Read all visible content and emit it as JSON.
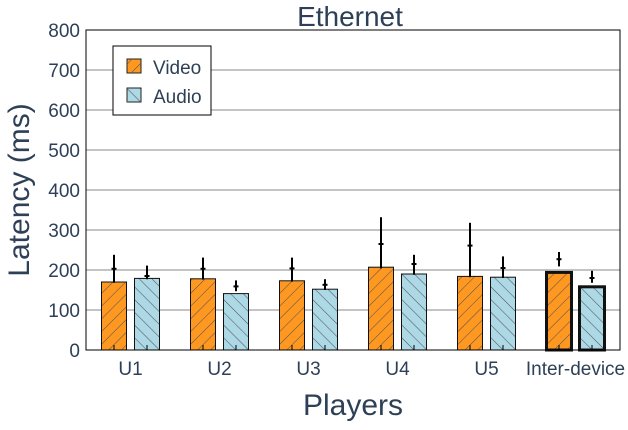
{
  "chart_data": {
    "type": "bar",
    "title": "Ethernet",
    "xlabel": "Players",
    "ylabel": "Latency (ms)",
    "ylim": [
      0,
      800
    ],
    "yticks": [
      0,
      100,
      200,
      300,
      400,
      500,
      600,
      700,
      800
    ],
    "grid": "horizontal",
    "legend_position": "top-left",
    "categories": [
      "U1",
      "U2",
      "U3",
      "U4",
      "U5",
      "Inter-device"
    ],
    "highlighted_category": "Inter-device",
    "series": [
      {
        "name": "Video",
        "color": "#ff9820",
        "hatch": "forward-diagonal",
        "values": [
          170,
          178,
          173,
          207,
          184,
          194
        ],
        "mean_markers": [
          203,
          203,
          204,
          265,
          261,
          227
        ],
        "error_low": [
          168,
          176,
          171,
          204,
          182,
          209
        ],
        "error_high": [
          238,
          231,
          231,
          332,
          318,
          245
        ]
      },
      {
        "name": "Audio",
        "color": "#add8e6",
        "hatch": "backward-diagonal",
        "values": [
          179,
          141,
          152,
          190,
          182,
          158
        ],
        "mean_markers": [
          185,
          159,
          163,
          215,
          205,
          180
        ],
        "error_low": [
          177,
          147,
          150,
          188,
          180,
          168
        ],
        "error_high": [
          211,
          174,
          177,
          238,
          234,
          198
        ]
      }
    ]
  }
}
